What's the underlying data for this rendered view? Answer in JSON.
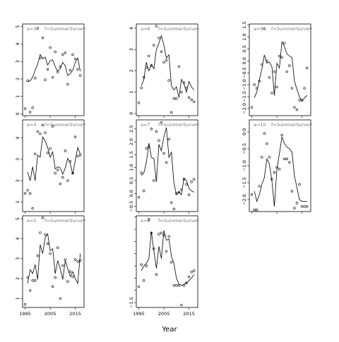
{
  "chart_data": {
    "type": "line",
    "xlabel": "Year",
    "xticks": [
      1995,
      2005,
      2015
    ],
    "xlim": [
      1994,
      2018.5
    ],
    "x_tick_labels_on_rows": [
      2
    ],
    "panels": [
      {
        "id": "a3",
        "label": "a=3",
        "subtitle": "f=SummerSurvey",
        "ylim": [
          -0.1,
          5.15
        ],
        "yticks": [
          0,
          1,
          2,
          3,
          4,
          5
        ],
        "ytick_labels": [
          "0",
          "1",
          "2",
          "3",
          "4",
          "5"
        ],
        "fitted": {
          "x": [
            1996,
            1997,
            1998,
            1999,
            2000,
            2001,
            2002,
            2003,
            2004,
            2005,
            2006,
            2007,
            2008,
            2009,
            2010,
            2011,
            2012,
            2013,
            2014,
            2015,
            2016,
            2017
          ],
          "y": [
            1.85,
            1.9,
            2.1,
            2.5,
            2.85,
            3.4,
            3.15,
            3.25,
            2.8,
            3.05,
            3.1,
            2.7,
            2.45,
            2.6,
            2.95,
            2.75,
            2.2,
            2.3,
            2.5,
            2.95,
            3.2,
            2.45
          ]
        },
        "observed": {
          "x": [
            1995,
            1996,
            1997,
            1998,
            1999,
            2000,
            2001,
            2002,
            2003,
            2004,
            2005,
            2006,
            2007,
            2008,
            2009,
            2010,
            2011,
            2012,
            2013,
            2014,
            2015,
            2016,
            2017
          ],
          "y": [
            0.3,
            1.9,
            0.1,
            0.35,
            2.05,
            4.9,
            3.2,
            4.35,
            1.95,
            2.55,
            3.8,
            2.1,
            3.55,
            2.4,
            2.7,
            3.4,
            3.5,
            1.7,
            2.5,
            3.4,
            3.15,
            2.55,
            2.2
          ]
        }
      },
      {
        "id": "a6",
        "label": "a=6",
        "subtitle": "f=SummerSurvey",
        "ylim": [
          -0.1,
          4.2
        ],
        "yticks": [
          0,
          1,
          2,
          3,
          4
        ],
        "ytick_labels": [
          "0",
          "1",
          "2",
          "3",
          "4"
        ],
        "fitted": {
          "x": [
            1996,
            1997,
            1998,
            1999,
            2000,
            2001,
            2002,
            2003,
            2004,
            2005,
            2006,
            2007,
            2008,
            2009,
            2010,
            2011,
            2012,
            2013,
            2014,
            2015,
            2016,
            2017
          ],
          "y": [
            1.3,
            1.6,
            2.4,
            2.0,
            2.3,
            2.1,
            3.0,
            3.3,
            3.65,
            3.2,
            2.6,
            2.75,
            1.3,
            1.1,
            1.25,
            0.75,
            1.6,
            1.4,
            1.0,
            1.5,
            1.25,
            1.1
          ]
        },
        "observed": {
          "x": [
            1995,
            1996,
            1997,
            1998,
            1999,
            2000,
            2001,
            2002,
            2003,
            2004,
            2005,
            2006,
            2007,
            2008,
            2009,
            2010,
            2011,
            2012,
            2013,
            2014,
            2015,
            2016,
            2017
          ],
          "y": [
            0.5,
            1.2,
            1.7,
            2.15,
            2.7,
            2.25,
            3.2,
            4.1,
            3.55,
            2.9,
            2.4,
            2.5,
            1.55,
            0.05,
            0.7,
            0.7,
            2.2,
            1.0,
            1.45,
            1.2,
            0.75,
            0.65,
            0.55
          ]
        }
      },
      {
        "id": "a9",
        "label": "a=9",
        "subtitle": "f=SummerSurvey",
        "ylim": [
          -2.3,
          1.55
        ],
        "yticks": [
          -2.0,
          -1.5,
          -1.0,
          -0.5,
          0.0,
          0.5,
          1.0,
          1.5
        ],
        "ytick_labels": [
          "−2.0",
          "−1.5",
          "−1.0",
          "−0.5",
          "0.0",
          "0.5",
          "1.0",
          "1.5"
        ],
        "fitted": {
          "x": [
            1996,
            1997,
            1998,
            1999,
            2000,
            2001,
            2002,
            2003,
            2004,
            2005,
            2006,
            2007,
            2008,
            2009,
            2010,
            2011,
            2012,
            2013,
            2014,
            2015,
            2016,
            2017
          ],
          "y": [
            -1.55,
            -1.3,
            -0.8,
            -0.35,
            0.25,
            -0.1,
            -0.05,
            -0.25,
            -1.45,
            -0.1,
            -0.3,
            0.8,
            0.6,
            0.3,
            0.2,
            0.15,
            -0.85,
            -1.2,
            -1.5,
            -1.7,
            -1.55,
            -1.45
          ]
        },
        "observed": {
          "x": [
            1995,
            1996,
            1997,
            1998,
            1999,
            2000,
            2001,
            2002,
            2003,
            2004,
            2005,
            2006,
            2007,
            2008,
            2009,
            2010,
            2011,
            2012,
            2013,
            2014,
            2015,
            2016,
            2017
          ],
          "y": [
            -1.95,
            -1.0,
            -1.15,
            -0.85,
            -0.15,
            1.35,
            0.0,
            -0.7,
            -1.35,
            -0.45,
            -1.1,
            0.2,
            0.15,
            0.75,
            -0.45,
            -0.2,
            -1.15,
            -1.95,
            -2.05,
            -1.65,
            -1.65,
            -1.15,
            -0.3
          ]
        }
      },
      {
        "id": "a4",
        "label": "a=4",
        "subtitle": "f=SummerSurvey",
        "ylim": [
          0.55,
          4.85
        ],
        "yticks": [
          1,
          2,
          3,
          4
        ],
        "ytick_labels": [
          "1",
          "2",
          "3",
          "4"
        ],
        "fitted": {
          "x": [
            1996,
            1997,
            1998,
            1999,
            2000,
            2001,
            2002,
            2003,
            2004,
            2005,
            2006,
            2007,
            2008,
            2009,
            2010,
            2011,
            2012,
            2013,
            2014,
            2015,
            2016,
            2017
          ],
          "y": [
            2.4,
            2.0,
            2.65,
            2.0,
            3.2,
            3.1,
            4.05,
            3.85,
            3.55,
            3.1,
            3.35,
            2.55,
            2.65,
            2.6,
            2.3,
            2.6,
            3.05,
            2.8,
            2.3,
            2.95,
            3.55,
            3.25
          ]
        },
        "observed": {
          "x": [
            1995,
            1996,
            1997,
            1998,
            1999,
            2000,
            2001,
            2002,
            2003,
            2004,
            2005,
            2006,
            2007,
            2008,
            2009,
            2010,
            2011,
            2012,
            2013,
            2014,
            2015,
            2016,
            2017
          ],
          "y": [
            1.4,
            1.55,
            1.4,
            0.7,
            3.25,
            4.3,
            4.2,
            4.6,
            4.25,
            3.3,
            3.5,
            4.55,
            2.35,
            2.5,
            1.85,
            2.15,
            3.4,
            2.0,
            2.9,
            2.35,
            4.05,
            3.15,
            3.2
          ]
        }
      },
      {
        "id": "a7",
        "label": "a=7",
        "subtitle": "f=SummerSurvey",
        "ylim": [
          -0.7,
          2.85
        ],
        "yticks": [
          -0.5,
          0.0,
          0.5,
          1.0,
          1.5,
          2.0,
          2.5
        ],
        "ytick_labels": [
          "−0.5",
          "0.0",
          "0.5",
          "1.0",
          "1.5",
          "2.0",
          "2.5"
        ],
        "fitted": {
          "x": [
            1996,
            1997,
            1998,
            1999,
            2000,
            2001,
            2002,
            2003,
            2004,
            2005,
            2006,
            2007,
            2008,
            2009,
            2010,
            2011,
            2012,
            2013,
            2014,
            2015,
            2016,
            2017
          ],
          "y": [
            0.7,
            0.8,
            1.2,
            1.95,
            1.4,
            1.35,
            0.45,
            1.9,
            1.65,
            2.2,
            2.55,
            1.4,
            1.6,
            0.4,
            -0.05,
            0.05,
            -0.05,
            0.6,
            0.5,
            0.2,
            0.1,
            0.05
          ]
        },
        "observed": {
          "x": [
            1995,
            1996,
            1997,
            1998,
            1999,
            2000,
            2001,
            2002,
            2003,
            2004,
            2005,
            2006,
            2007,
            2008,
            2009,
            2010,
            2011,
            2012,
            2013,
            2014,
            2015,
            2016,
            2017
          ],
          "y": [
            -0.15,
            0.8,
            0.1,
            1.75,
            1.8,
            2.5,
            0.5,
            2.4,
            2.05,
            2.75,
            1.55,
            1.2,
            2.1,
            -0.35,
            -0.6,
            0.0,
            0.05,
            0.15,
            0.55,
            0.35,
            -0.05,
            0.45,
            0.55
          ]
        }
      },
      {
        "id": "a10",
        "label": "a=10",
        "subtitle": "f=SummerSurvey",
        "ylim": [
          -2.35,
          0.35
        ],
        "yticks": [
          -2.0,
          -1.5,
          -1.0,
          -0.5,
          0.0
        ],
        "ytick_labels": [
          "−2.0",
          "−1.5",
          "−1.0",
          "−0.5",
          "0.0"
        ],
        "fitted": {
          "x": [
            1996,
            1997,
            1998,
            1999,
            2000,
            2001,
            2002,
            2003,
            2004,
            2005,
            2006,
            2007,
            2008,
            2009,
            2010,
            2011,
            2012,
            2013,
            2014,
            2015,
            2016,
            2017
          ],
          "y": [
            -1.75,
            -2.05,
            -1.85,
            -1.55,
            -1.35,
            -0.8,
            -0.95,
            -1.45,
            -2.2,
            -1.1,
            -0.65,
            -0.15,
            -0.35,
            -0.45,
            -0.5,
            -0.6,
            -1.3,
            -1.65,
            -2.0,
            -2.05,
            -2.05,
            -2.05
          ]
        },
        "observed": {
          "x": [
            1995,
            1996,
            1997,
            1998,
            1999,
            2000,
            2001,
            2002,
            2003,
            2004,
            2005,
            2006,
            2007,
            2008,
            2009,
            2010,
            2011,
            2012,
            2013,
            2014,
            2015,
            2016,
            2017
          ],
          "y": [
            -1.85,
            -2.3,
            -2.3,
            -1.6,
            -0.75,
            -0.05,
            -0.35,
            -0.75,
            -1.4,
            -1.2,
            -1.05,
            -1.1,
            -0.1,
            -0.8,
            -0.8,
            -0.9,
            -1.75,
            -2.25,
            -2.1,
            -1.55,
            -2.2,
            -2.2,
            -2.2
          ]
        }
      },
      {
        "id": "a5",
        "label": "a=5",
        "subtitle": "f=SummerSurvey",
        "ylim": [
          0.55,
          5.15
        ],
        "yticks": [
          1,
          2,
          3,
          4,
          5
        ],
        "ytick_labels": [
          "1",
          "2",
          "3",
          "4",
          "5"
        ],
        "fitted": {
          "x": [
            1996,
            1997,
            1998,
            1999,
            2000,
            2001,
            2002,
            2003,
            2004,
            2005,
            2006,
            2007,
            2008,
            2009,
            2010,
            2011,
            2012,
            2013,
            2014,
            2015,
            2016,
            2017
          ],
          "y": [
            1.75,
            2.45,
            2.25,
            2.7,
            1.95,
            3.7,
            3.25,
            4.05,
            4.25,
            3.4,
            3.5,
            2.25,
            2.9,
            2.5,
            1.95,
            2.9,
            2.5,
            2.1,
            2.35,
            2.0,
            1.75,
            3.25
          ]
        },
        "observed": {
          "x": [
            1995,
            1996,
            1997,
            1998,
            1999,
            2000,
            2001,
            2002,
            2003,
            2004,
            2005,
            2006,
            2007,
            2008,
            2009,
            2010,
            2011,
            2012,
            2013,
            2014,
            2015,
            2016,
            2017
          ],
          "y": [
            0.7,
            2.05,
            1.4,
            1.9,
            1.9,
            3.15,
            4.3,
            5.05,
            4.2,
            3.75,
            3.25,
            1.6,
            2.05,
            3.55,
            1.0,
            2.65,
            2.95,
            1.85,
            2.35,
            2.1,
            2.95,
            2.85,
            2.9
          ]
        }
      },
      {
        "id": "a8",
        "label": "a=8",
        "subtitle": "f=SummerSurvey",
        "ylim": [
          -1.7,
          2.05
        ],
        "yticks": [
          -1.5,
          -1.0,
          -0.5,
          0.0,
          0.5,
          1.0,
          1.5,
          2.0
        ],
        "ytick_labels": [
          "−1.5",
          "",
          "",
          "",
          "",
          "",
          "",
          ""
        ],
        "fitted": {
          "x": [
            1996,
            1997,
            1998,
            1999,
            2000,
            2001,
            2002,
            2003,
            2004,
            2005,
            2006,
            2007,
            2008,
            2009,
            2010,
            2011,
            2012,
            2013,
            2014,
            2015,
            2016,
            2017
          ],
          "y": [
            -0.2,
            0.0,
            0.1,
            0.3,
            1.4,
            0.6,
            -0.1,
            0.8,
            0.3,
            1.45,
            1.05,
            1.1,
            0.4,
            0.1,
            -0.5,
            -0.75,
            -0.8,
            -0.75,
            -0.7,
            -0.6,
            -0.5,
            -0.35
          ]
        },
        "observed": {
          "x": [
            1995,
            1996,
            1997,
            1998,
            1999,
            2000,
            2001,
            2002,
            2003,
            2004,
            2005,
            2006,
            2007,
            2008,
            2009,
            2010,
            2011,
            2012,
            2013,
            2014,
            2015,
            2016,
            2017
          ],
          "y": [
            -0.85,
            0.05,
            -0.6,
            0.0,
            1.9,
            1.35,
            0.7,
            -0.35,
            1.3,
            1.35,
            1.25,
            0.6,
            1.2,
            0.15,
            -0.8,
            -0.8,
            -0.8,
            -1.6,
            -0.8,
            -0.7,
            -0.45,
            -0.25,
            -0.2
          ]
        }
      }
    ]
  }
}
